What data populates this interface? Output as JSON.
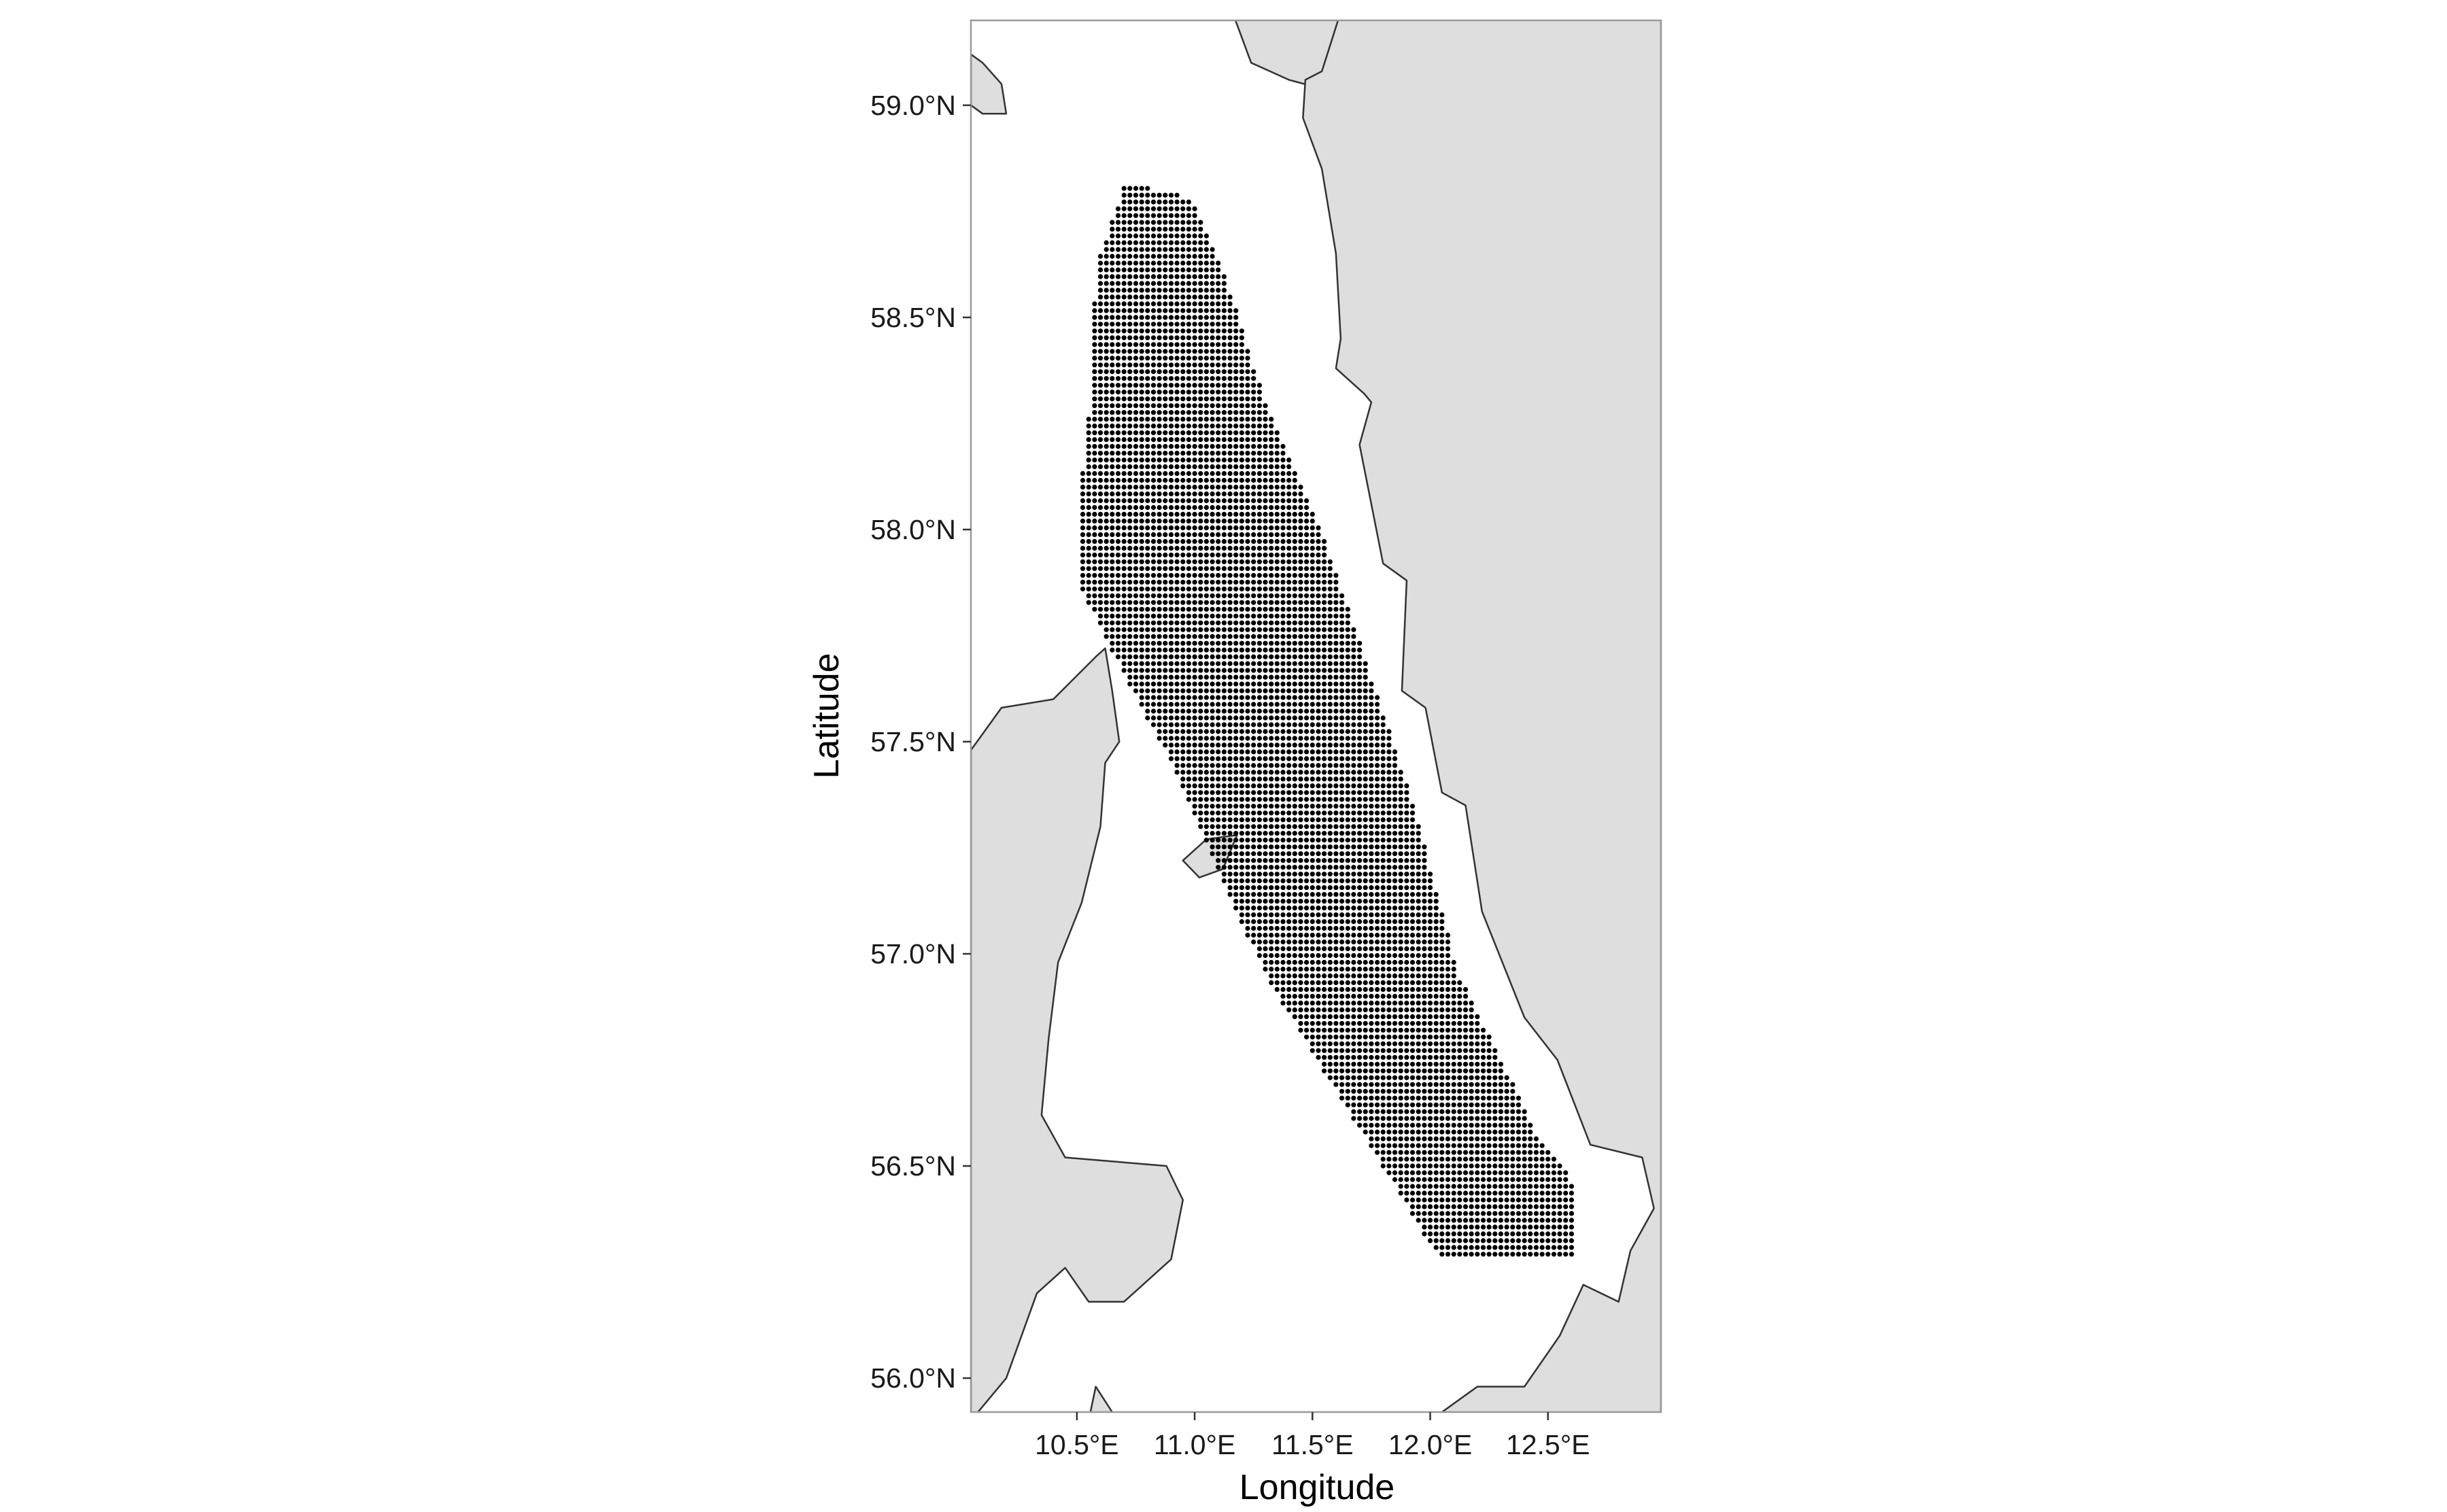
{
  "map": {
    "xlabel": "Longitude",
    "ylabel": "Latitude",
    "xlim": [
      10.05,
      12.98
    ],
    "ylim": [
      55.92,
      59.2
    ],
    "x_ticks": [
      {
        "value": 10.5,
        "label": "10.5°E"
      },
      {
        "value": 11.0,
        "label": "11.0°E"
      },
      {
        "value": 11.5,
        "label": "11.5°E"
      },
      {
        "value": 12.0,
        "label": "12.0°E"
      },
      {
        "value": 12.5,
        "label": "12.5°E"
      }
    ],
    "y_ticks": [
      {
        "value": 56.0,
        "label": "56.0°N"
      },
      {
        "value": 56.5,
        "label": "56.5°N"
      },
      {
        "value": 57.0,
        "label": "57.0°N"
      },
      {
        "value": 57.5,
        "label": "57.5°N"
      },
      {
        "value": 58.0,
        "label": "58.0°N"
      },
      {
        "value": 58.5,
        "label": "58.5°N"
      },
      {
        "value": 59.0,
        "label": "59.0°N"
      }
    ],
    "colors": {
      "land": "#dedede",
      "sea": "#ffffff",
      "coastline": "#333333",
      "panel_border": "#999999",
      "grid_points": "#000000"
    },
    "grid": {
      "lon_step": 0.025,
      "lat_step": 0.016,
      "region_polygon": [
        [
          10.71,
          58.82
        ],
        [
          10.99,
          58.78
        ],
        [
          11.14,
          58.58
        ],
        [
          11.3,
          58.3
        ],
        [
          11.55,
          57.98
        ],
        [
          11.75,
          57.65
        ],
        [
          11.93,
          57.35
        ],
        [
          12.12,
          56.95
        ],
        [
          12.45,
          56.58
        ],
        [
          12.62,
          56.45
        ],
        [
          12.62,
          56.28
        ],
        [
          12.04,
          56.28
        ],
        [
          11.3,
          56.95
        ],
        [
          10.9,
          57.45
        ],
        [
          10.68,
          57.68
        ],
        [
          10.52,
          57.86
        ],
        [
          10.52,
          58.12
        ],
        [
          10.56,
          58.32
        ],
        [
          10.58,
          58.62
        ]
      ]
    },
    "land_polygons": [
      [
        [
          11.16,
          59.22
        ],
        [
          11.24,
          59.1
        ],
        [
          11.4,
          59.06
        ],
        [
          11.6,
          59.03
        ],
        [
          11.68,
          58.98
        ],
        [
          11.72,
          58.85
        ],
        [
          11.78,
          58.84
        ],
        [
          11.88,
          58.92
        ],
        [
          12.0,
          59.22
        ]
      ],
      [
        [
          11.46,
          58.97
        ],
        [
          11.54,
          58.85
        ],
        [
          11.6,
          58.65
        ],
        [
          11.62,
          58.45
        ],
        [
          11.6,
          58.38
        ],
        [
          11.72,
          58.32
        ],
        [
          11.75,
          58.3
        ],
        [
          11.7,
          58.2
        ],
        [
          11.8,
          57.92
        ],
        [
          11.9,
          57.88
        ],
        [
          11.88,
          57.62
        ],
        [
          11.98,
          57.58
        ],
        [
          12.05,
          57.38
        ],
        [
          12.15,
          57.35
        ],
        [
          12.22,
          57.1
        ],
        [
          12.4,
          56.85
        ],
        [
          12.54,
          56.75
        ],
        [
          12.68,
          56.55
        ],
        [
          12.9,
          56.52
        ],
        [
          12.95,
          56.4
        ],
        [
          12.85,
          56.3
        ],
        [
          12.8,
          56.18
        ],
        [
          12.65,
          56.22
        ],
        [
          12.55,
          56.1
        ],
        [
          12.4,
          55.98
        ],
        [
          12.2,
          55.98
        ],
        [
          11.95,
          55.88
        ],
        [
          12.98,
          55.88
        ],
        [
          12.98,
          59.22
        ],
        [
          11.62,
          59.22
        ],
        [
          11.54,
          59.08
        ],
        [
          11.47,
          59.06
        ]
      ],
      [
        [
          10.05,
          57.48
        ],
        [
          10.18,
          57.58
        ],
        [
          10.4,
          57.6
        ],
        [
          10.58,
          57.7
        ],
        [
          10.62,
          57.72
        ],
        [
          10.65,
          57.62
        ],
        [
          10.68,
          57.5
        ],
        [
          10.62,
          57.45
        ],
        [
          10.6,
          57.3
        ],
        [
          10.52,
          57.12
        ],
        [
          10.42,
          56.98
        ],
        [
          10.38,
          56.8
        ],
        [
          10.35,
          56.62
        ],
        [
          10.45,
          56.52
        ],
        [
          10.88,
          56.5
        ],
        [
          10.95,
          56.42
        ],
        [
          10.9,
          56.28
        ],
        [
          10.7,
          56.18
        ],
        [
          10.55,
          56.18
        ],
        [
          10.45,
          56.26
        ],
        [
          10.33,
          56.2
        ],
        [
          10.2,
          56.0
        ],
        [
          10.05,
          55.9
        ]
      ],
      [
        [
          10.05,
          59.12
        ],
        [
          10.1,
          59.1
        ],
        [
          10.18,
          59.05
        ],
        [
          10.2,
          58.98
        ],
        [
          10.1,
          58.98
        ],
        [
          10.05,
          59.0
        ]
      ],
      [
        [
          10.55,
          55.9
        ],
        [
          10.58,
          55.98
        ],
        [
          10.65,
          55.92
        ]
      ],
      [
        [
          10.95,
          57.22
        ],
        [
          11.05,
          57.27
        ],
        [
          11.18,
          57.28
        ],
        [
          11.12,
          57.2
        ],
        [
          11.02,
          57.18
        ]
      ]
    ]
  }
}
